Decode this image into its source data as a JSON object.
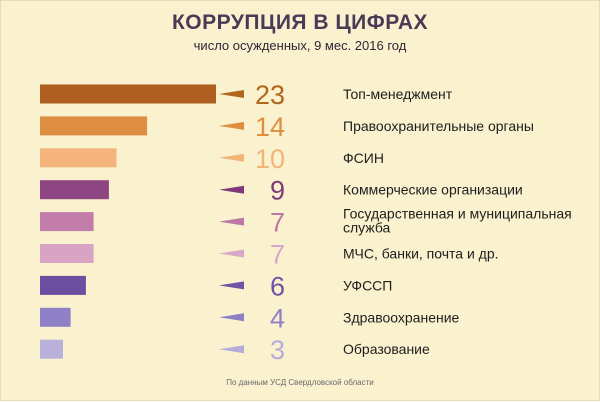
{
  "header": {
    "title": "КОРРУПЦИЯ В ЦИФРАХ",
    "subtitle": "число осужденных, 9 мес. 2016 год"
  },
  "footer": {
    "source": "По данным УСД Свердловской области"
  },
  "chart_data": {
    "type": "bar",
    "orientation": "horizontal",
    "title": "КОРРУПЦИЯ В ЦИФРАХ",
    "subtitle": "число осужденных, 9 мес. 2016 год",
    "xlabel": "",
    "ylabel": "",
    "grid": false,
    "legend": "none",
    "categories": [
      "Топ-менеджмент",
      "Правоохранительные органы",
      "ФСИН",
      "Коммерческие организации",
      "Государственная и муниципальная служба",
      "МЧС, банки, почта и др.",
      "УФССП",
      "Здравоохранение",
      "Образование"
    ],
    "values": [
      23,
      14,
      10,
      9,
      7,
      7,
      6,
      4,
      3
    ],
    "label_lines": [
      [
        "Топ-менеджмент"
      ],
      [
        "Правоохранительные органы"
      ],
      [
        "ФСИН"
      ],
      [
        "Коммерческие  организации"
      ],
      [
        "Государственная и муниципальная",
        "служба"
      ],
      [
        "МЧС, банки, почта и др."
      ],
      [
        "УФССП"
      ],
      [
        "Здравоохранение"
      ],
      [
        "Образование"
      ]
    ],
    "bar_colors": [
      "#AF5F20",
      "#DE8E40",
      "#F4B47B",
      "#8E4683",
      "#C27DAA",
      "#D9A4C4",
      "#6D4FA2",
      "#9080C8",
      "#BAB0DC"
    ],
    "value_colors": [
      "#B0661C",
      "#DE8E3E",
      "#F2B477",
      "#7F3B77",
      "#BD77A5",
      "#D8A8C6",
      "#7053A5",
      "#8F80C6",
      "#B5ACDA"
    ]
  }
}
